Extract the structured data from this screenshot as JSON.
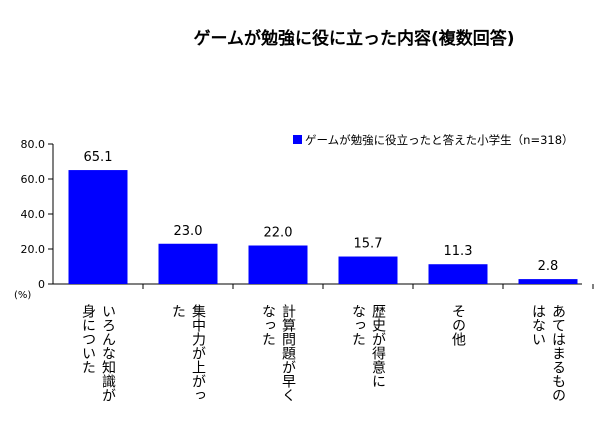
{
  "chart_data": {
    "type": "bar",
    "title": "ゲームが勉強に役に立った内容(複数回答)",
    "ylabel": "(%)",
    "ylim": [
      0,
      80
    ],
    "yticks": [
      "0",
      "20.0",
      "40.0",
      "60.0",
      "80.0"
    ],
    "yticks_values": [
      0,
      20,
      40,
      60,
      80
    ],
    "grid": false,
    "legend_position": "top-right",
    "categories": [
      [
        "いろんな知識が",
        "身についた"
      ],
      [
        "集中力が上がっ",
        "た"
      ],
      [
        "計算問題が早く",
        "なった"
      ],
      [
        "歴史が得意に",
        "なった"
      ],
      [
        "その他"
      ],
      [
        "あてはまるもの",
        "はない"
      ]
    ],
    "series": [
      {
        "name": "ゲームが勉強に役立ったと答えた小学生（n=318）",
        "values": [
          65.1,
          23.0,
          22.0,
          15.7,
          11.3,
          2.8
        ],
        "labels": [
          "65.1",
          "23.0",
          "22.0",
          "15.7",
          "11.3",
          "2.8"
        ],
        "color": "#0000ff"
      }
    ]
  }
}
